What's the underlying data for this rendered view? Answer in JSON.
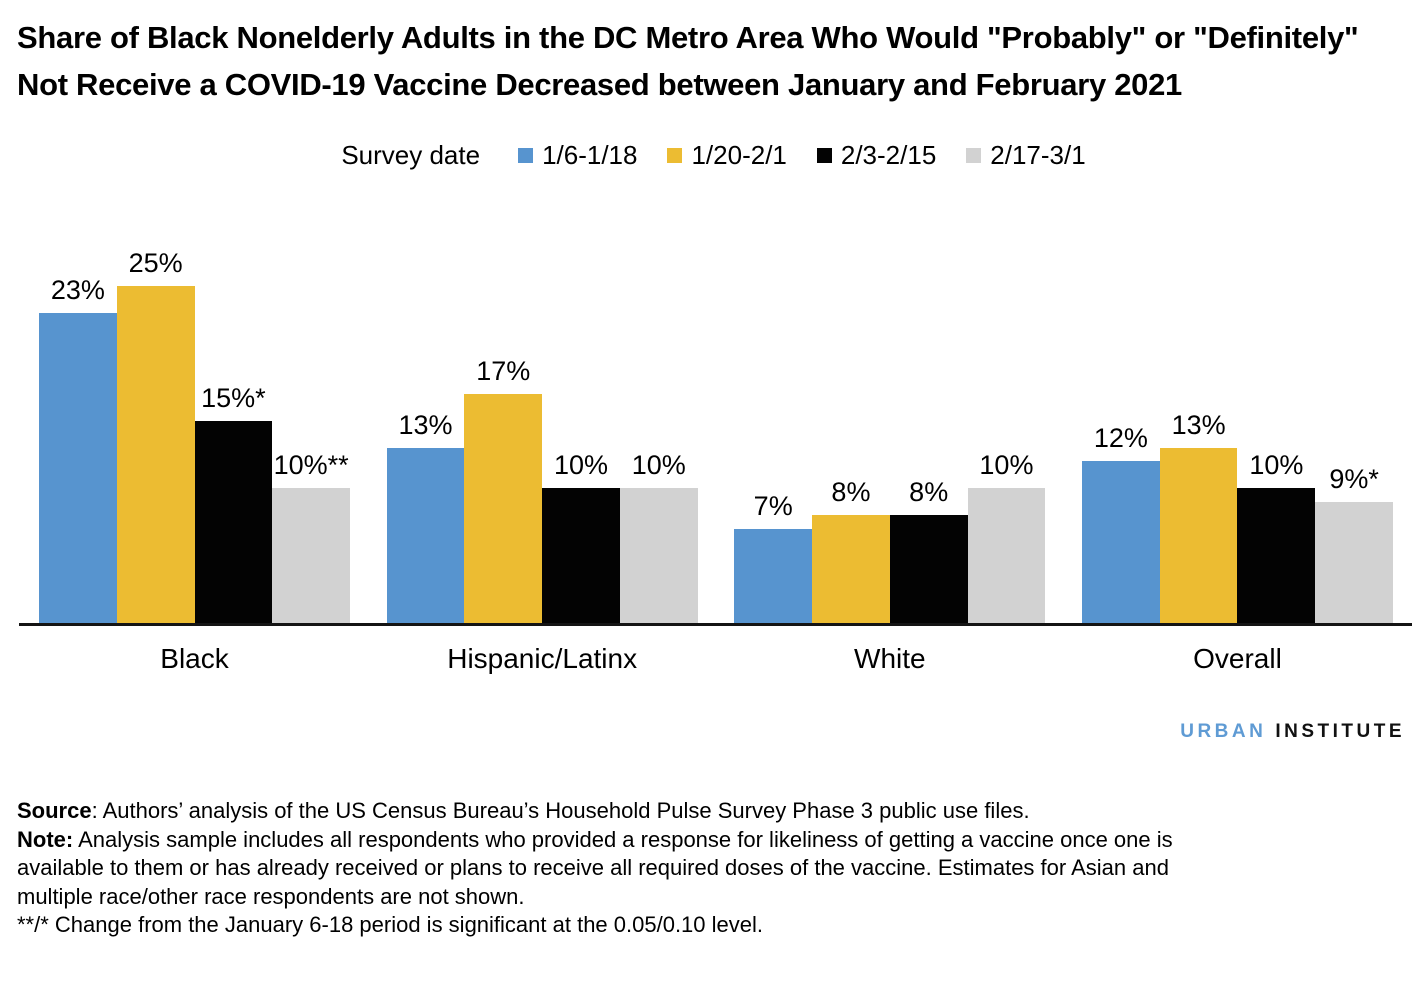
{
  "title": "Share of Black Nonelderly Adults in the DC Metro Area Who Would \"Probably\" or \"Definitely\" Not Receive a COVID-19 Vaccine Decreased between January and February 2021",
  "legend": {
    "label": "Survey date",
    "items": [
      {
        "label": "1/6-1/18",
        "color": "#5794CF"
      },
      {
        "label": "1/20-2/1",
        "color": "#ECBC32"
      },
      {
        "label": "2/3-2/15",
        "color": "#030303"
      },
      {
        "label": "2/17-3/1",
        "color": "#D2D2D2"
      }
    ]
  },
  "chart_data": {
    "type": "bar",
    "categories": [
      "Black",
      "Hispanic/Latinx",
      "White",
      "Overall"
    ],
    "series": [
      {
        "name": "1/6-1/18",
        "color": "#5794CF",
        "values": [
          23,
          13,
          7,
          12
        ],
        "labels": [
          "23%",
          "13%",
          "7%",
          "12%"
        ]
      },
      {
        "name": "1/20-2/1",
        "color": "#ECBC32",
        "values": [
          25,
          17,
          8,
          13
        ],
        "labels": [
          "25%",
          "17%",
          "8%",
          "13%"
        ]
      },
      {
        "name": "2/3-2/15",
        "color": "#030303",
        "values": [
          15,
          10,
          8,
          10
        ],
        "labels": [
          "15%*",
          "10%",
          "8%",
          "10%"
        ]
      },
      {
        "name": "2/17-3/1",
        "color": "#D2D2D2",
        "values": [
          10,
          10,
          10,
          9
        ],
        "labels": [
          "10%**",
          "10%",
          "10%",
          "9%*"
        ]
      }
    ],
    "value_suffix": "%",
    "ylim": [
      0,
      29.6
    ],
    "y_axis_visible": false,
    "grid": false,
    "legend_position": "top-center",
    "axis_color": "#141414"
  },
  "logo": {
    "urban": "URBAN",
    "institute": "INSTITUTE",
    "urban_color": "#5F9BD4"
  },
  "notes": {
    "source_label": "Source",
    "source_text": ": Authors’ analysis of the US Census Bureau’s Household Pulse Survey Phase 3 public use files.",
    "note_label": "Note:",
    "note_text": " Analysis sample includes all respondents who provided a response for likeliness of getting a vaccine once one is available to them or has already received or plans to receive all required doses of the vaccine.  Estimates for Asian and multiple race/other race respondents are not shown.",
    "significance": "**/* Change from the January 6-18 period is significant at the 0.05/0.10 level."
  }
}
